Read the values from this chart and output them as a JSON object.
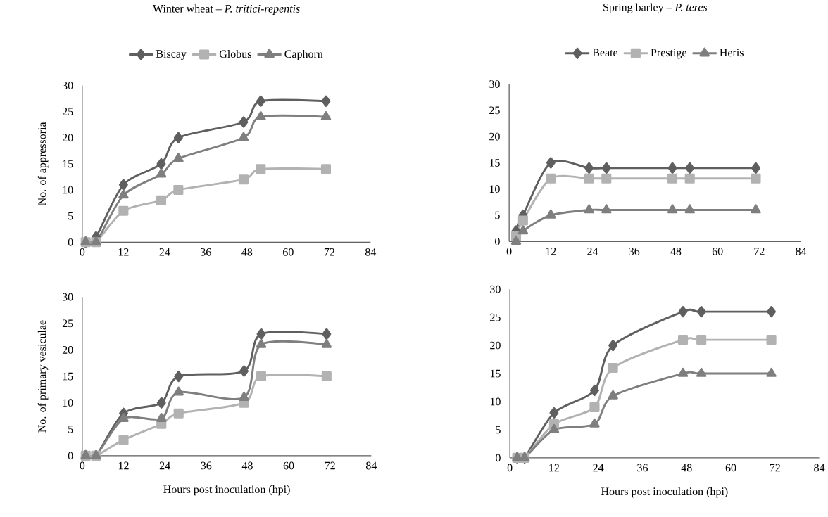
{
  "chart_data": [
    {
      "type": "line",
      "title": "Winter wheat – *P. tritici-repentis*",
      "ylabel": "No. of appressoria",
      "x": [
        1,
        4,
        12,
        23,
        28,
        47,
        52,
        71
      ],
      "xlim": [
        0,
        84
      ],
      "xticks": [
        0,
        12,
        24,
        36,
        48,
        60,
        72,
        84
      ],
      "ylim": [
        0,
        30
      ],
      "yticks": [
        0,
        5,
        10,
        15,
        20,
        25,
        30
      ],
      "legend": "top",
      "series": [
        {
          "name": "Biscay",
          "color": "#5f5f5f",
          "marker": "diamond",
          "values": [
            0,
            1,
            11,
            15,
            20,
            23,
            27,
            27
          ]
        },
        {
          "name": "Globus",
          "color": "#b2b2b2",
          "marker": "square",
          "values": [
            0,
            0,
            6,
            8,
            10,
            12,
            14,
            14
          ]
        },
        {
          "name": "Caphorn",
          "color": "#7f7f7f",
          "marker": "triangle",
          "values": [
            0,
            0,
            9,
            13,
            16,
            20,
            24,
            24
          ]
        }
      ]
    },
    {
      "type": "line",
      "title": "Spring barley – *P. teres*",
      "x": [
        2,
        4,
        12,
        23,
        28,
        47,
        52,
        71
      ],
      "xlim": [
        0,
        84
      ],
      "xticks": [
        0,
        12,
        24,
        36,
        48,
        60,
        72,
        84
      ],
      "ylim": [
        0,
        30
      ],
      "yticks": [
        0,
        5,
        10,
        15,
        20,
        25,
        30
      ],
      "legend": "top",
      "series": [
        {
          "name": "Beate",
          "color": "#5f5f5f",
          "marker": "diamond",
          "values": [
            2,
            5,
            15,
            14,
            14,
            14,
            14,
            14
          ]
        },
        {
          "name": "Prestige",
          "color": "#b2b2b2",
          "marker": "square",
          "values": [
            1,
            4,
            12,
            12,
            12,
            12,
            12,
            12
          ]
        },
        {
          "name": "Heris",
          "color": "#7f7f7f",
          "marker": "triangle",
          "values": [
            0,
            2,
            5,
            6,
            6,
            6,
            6,
            6
          ]
        }
      ]
    },
    {
      "type": "line",
      "xlabel": "Hours post inoculation (hpi)",
      "ylabel": "No. of primary vesiculae",
      "x": [
        1,
        4,
        12,
        23,
        28,
        47,
        52,
        71
      ],
      "xlim": [
        0,
        84
      ],
      "xticks": [
        0,
        12,
        24,
        36,
        48,
        60,
        72,
        84
      ],
      "ylim": [
        0,
        30
      ],
      "yticks": [
        0,
        5,
        10,
        15,
        20,
        25,
        30
      ],
      "series": [
        {
          "color": "#5f5f5f",
          "marker": "diamond",
          "values": [
            0,
            0,
            8,
            10,
            15,
            16,
            23,
            23
          ]
        },
        {
          "color": "#b2b2b2",
          "marker": "square",
          "values": [
            0,
            0,
            3,
            6,
            8,
            10,
            15,
            15
          ]
        },
        {
          "color": "#7f7f7f",
          "marker": "triangle",
          "values": [
            0,
            0,
            7,
            7,
            12,
            11,
            21,
            21
          ]
        }
      ]
    },
    {
      "type": "line",
      "xlabel": "Hours post inoculation (hpi)",
      "x": [
        2,
        4,
        12,
        23,
        28,
        47,
        52,
        71
      ],
      "xlim": [
        0,
        84
      ],
      "xticks": [
        0,
        12,
        24,
        36,
        48,
        60,
        72,
        84
      ],
      "ylim": [
        0,
        30
      ],
      "yticks": [
        0,
        5,
        10,
        15,
        20,
        25,
        30
      ],
      "series": [
        {
          "color": "#5f5f5f",
          "marker": "diamond",
          "values": [
            0,
            0,
            8,
            12,
            20,
            26,
            26,
            26
          ]
        },
        {
          "color": "#b2b2b2",
          "marker": "square",
          "values": [
            0,
            0,
            6,
            9,
            16,
            21,
            21,
            21
          ]
        },
        {
          "color": "#7f7f7f",
          "marker": "triangle",
          "values": [
            0,
            0,
            5,
            6,
            11,
            15,
            15,
            15
          ]
        }
      ]
    }
  ]
}
